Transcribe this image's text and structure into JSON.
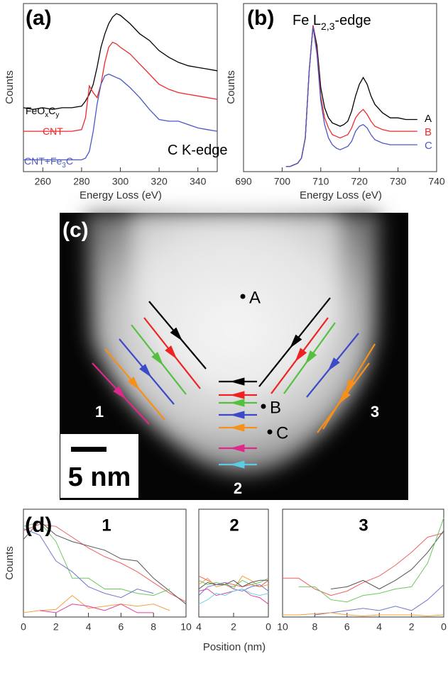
{
  "chart_data": [
    {
      "type": "line",
      "panel_label": "(a)",
      "annotation": [
        "C K-edge"
      ],
      "xlabel": "Energy Loss (eV)",
      "ylabel": "Counts",
      "xlim": [
        250,
        350
      ],
      "xticks": [
        260,
        280,
        300,
        320,
        340
      ],
      "ylim": [
        0,
        100
      ],
      "x": [
        250,
        255,
        260,
        265,
        270,
        275,
        280,
        282,
        284,
        286,
        288,
        290,
        292,
        294,
        296,
        298,
        300,
        305,
        310,
        315,
        320,
        325,
        330,
        335,
        340,
        345,
        350
      ],
      "series": [
        {
          "label": [
            "FeO",
            "x",
            "C",
            "y"
          ],
          "color": "#000000",
          "values": [
            38,
            37,
            38,
            37,
            38,
            38,
            39,
            42,
            46,
            52,
            62,
            74,
            82,
            88,
            92,
            94,
            93,
            88,
            82,
            78,
            72,
            68,
            65,
            63,
            62,
            61,
            60
          ]
        },
        {
          "label": [
            "CNT"
          ],
          "color": "#ee2a2a",
          "values": [
            24,
            24,
            24,
            24,
            24,
            24,
            25,
            32,
            51,
            47,
            44,
            52,
            65,
            74,
            77,
            76,
            74,
            70,
            64,
            58,
            52,
            49,
            47,
            46,
            45,
            44,
            43
          ]
        },
        {
          "label": [
            "CNT+Fe",
            "3",
            "C"
          ],
          "color": "#4b58c4",
          "values": [
            7,
            7,
            7,
            7,
            7,
            7,
            7,
            8,
            12,
            24,
            40,
            52,
            57,
            58,
            57,
            56,
            55,
            50,
            44,
            37,
            31,
            30,
            30,
            28,
            26,
            25,
            24
          ]
        }
      ]
    },
    {
      "type": "line",
      "panel_label": "(b)",
      "annotation": [
        "Fe L",
        "2,3",
        "-edge"
      ],
      "xlabel": "Energy Loss (eV)",
      "ylabel": "Counts",
      "xlim": [
        690,
        740
      ],
      "xticks": [
        690,
        700,
        710,
        720,
        730,
        740
      ],
      "ylim": [
        0,
        100
      ],
      "x": [
        701,
        702,
        703,
        704,
        705,
        706,
        707,
        708,
        709,
        710,
        711,
        712,
        713,
        714,
        715,
        716,
        717,
        718,
        719,
        720,
        721,
        722,
        723,
        724,
        726,
        728,
        730,
        732,
        735
      ],
      "series": [
        {
          "name": "A",
          "color": "#000000",
          "values": [
            3,
            3,
            4,
            5,
            8,
            20,
            60,
            87,
            75,
            50,
            38,
            32,
            29,
            28,
            27,
            28,
            30,
            36,
            45,
            52,
            56,
            52,
            45,
            40,
            35,
            32,
            32,
            31,
            31
          ]
        },
        {
          "name": "B",
          "color": "#ee2a2a",
          "values": [
            3,
            3,
            4,
            5,
            8,
            20,
            60,
            87,
            72,
            45,
            32,
            26,
            22,
            21,
            20,
            21,
            22,
            26,
            32,
            35,
            37,
            34,
            30,
            27,
            25,
            24,
            24,
            24,
            24
          ]
        },
        {
          "name": "C",
          "color": "#4b58c4",
          "values": [
            3,
            3,
            4,
            5,
            8,
            20,
            60,
            86,
            70,
            42,
            28,
            20,
            16,
            14,
            13,
            14,
            15,
            18,
            24,
            27,
            28,
            26,
            22,
            19,
            17,
            16,
            16,
            16,
            16
          ]
        }
      ]
    },
    {
      "type": "line",
      "panel_label": "(d)",
      "title": "1",
      "xlabel": "Position (nm)",
      "ylabel": "Counts",
      "xlim": [
        0,
        10
      ],
      "xticks": [
        0,
        2,
        4,
        6,
        8,
        10
      ],
      "ylim": [
        0,
        100
      ],
      "x": [
        0,
        1,
        2,
        3,
        4,
        5,
        6,
        7,
        8,
        9,
        10
      ],
      "series": [
        {
          "color": "#f06060",
          "values": [
            80,
            86,
            84,
            74,
            64,
            56,
            50,
            42,
            32,
            22,
            14
          ]
        },
        {
          "color": "#555555",
          "values": [
            72,
            89,
            76,
            70,
            66,
            62,
            54,
            52,
            36,
            24,
            12
          ]
        },
        {
          "color": "#6cc85c",
          "values": [
            84,
            88,
            70,
            36,
            36,
            26,
            26,
            22,
            20,
            26,
            null
          ]
        },
        {
          "color": "#7078d0",
          "values": [
            82,
            76,
            52,
            42,
            28,
            22,
            18,
            26,
            22,
            null,
            null
          ]
        },
        {
          "color": "#f5a040",
          "values": [
            4,
            6,
            7,
            20,
            8,
            10,
            12,
            10,
            12,
            6,
            null
          ]
        },
        {
          "color": "#e040a0",
          "values": [
            null,
            6,
            4,
            12,
            10,
            6,
            12,
            4,
            4,
            null,
            null
          ]
        }
      ]
    },
    {
      "type": "line",
      "title": "2",
      "xlim": [
        4,
        0
      ],
      "xticks": [
        4,
        2,
        0
      ],
      "ylim": [
        0,
        100
      ],
      "x": [
        4,
        3.5,
        3,
        2.5,
        2,
        1.5,
        1,
        0.5,
        0
      ],
      "series": [
        {
          "color": "#f06060",
          "values": [
            38,
            34,
            30,
            32,
            30,
            28,
            30,
            28,
            34
          ]
        },
        {
          "color": "#f5a040",
          "values": [
            30,
            36,
            28,
            30,
            26,
            38,
            34,
            28,
            30
          ]
        },
        {
          "color": "#6cc85c",
          "values": [
            34,
            30,
            32,
            30,
            28,
            34,
            30,
            32,
            36
          ]
        },
        {
          "color": "#555555",
          "values": [
            26,
            32,
            30,
            30,
            34,
            28,
            32,
            34,
            34
          ]
        },
        {
          "color": "#7078d0",
          "values": [
            20,
            28,
            30,
            32,
            26,
            24,
            28,
            30,
            24
          ]
        },
        {
          "color": "#e040a0",
          "values": [
            24,
            26,
            20,
            22,
            24,
            26,
            20,
            18,
            12
          ]
        },
        {
          "color": "#70d0e8",
          "values": [
            12,
            16,
            22,
            20,
            24,
            26,
            22,
            20,
            22
          ]
        }
      ]
    },
    {
      "type": "line",
      "title": "3",
      "xlim": [
        10,
        0
      ],
      "xticks": [
        10,
        8,
        6,
        4,
        2,
        0
      ],
      "ylim": [
        0,
        100
      ],
      "x": [
        10,
        9,
        8,
        7,
        6,
        5,
        4,
        3,
        2,
        1,
        0
      ],
      "series": [
        {
          "color": "#f06060",
          "values": [
            36,
            36,
            26,
            20,
            24,
            32,
            38,
            48,
            60,
            74,
            78
          ]
        },
        {
          "color": "#555555",
          "values": [
            null,
            null,
            null,
            26,
            28,
            34,
            26,
            34,
            44,
            60,
            80
          ]
        },
        {
          "color": "#6cc85c",
          "values": [
            null,
            28,
            28,
            16,
            14,
            20,
            22,
            26,
            28,
            50,
            92
          ]
        },
        {
          "color": "#7078d0",
          "values": [
            null,
            null,
            2,
            4,
            6,
            8,
            6,
            10,
            6,
            16,
            30
          ]
        },
        {
          "color": "#f5a040",
          "values": [
            2,
            2,
            3,
            4,
            2,
            1,
            2,
            2,
            2,
            1,
            2
          ]
        }
      ]
    }
  ],
  "image": {
    "panel_label": "(c)",
    "points": [
      "A",
      "B",
      "C"
    ],
    "regions": [
      "1",
      "2",
      "3"
    ],
    "scale_bar": "5 nm"
  }
}
